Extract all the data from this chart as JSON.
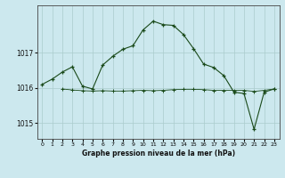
{
  "title": "Graphe pression niveau de la mer (hPa)",
  "bg_color": "#cce8ee",
  "grid_color": "#aacccc",
  "line_color": "#1a4a1a",
  "marker_color": "#1a4a1a",
  "xlim": [
    -0.5,
    23.5
  ],
  "ylim": [
    1014.55,
    1018.35
  ],
  "yticks": [
    1015,
    1016,
    1017
  ],
  "xtick_labels": [
    "0",
    "1",
    "2",
    "3",
    "4",
    "5",
    "6",
    "7",
    "8",
    "9",
    "10",
    "11",
    "12",
    "13",
    "14",
    "15",
    "16",
    "17",
    "18",
    "19",
    "20",
    "21",
    "22",
    "23"
  ],
  "series1_x": [
    0,
    1,
    2,
    3,
    4,
    5,
    6,
    7,
    8,
    9,
    10,
    11,
    12,
    13,
    14,
    15,
    16,
    17,
    18,
    19,
    20,
    21,
    22,
    23
  ],
  "series1_y": [
    1016.1,
    1016.25,
    1016.45,
    1016.6,
    1016.05,
    1015.97,
    1016.65,
    1016.9,
    1017.1,
    1017.2,
    1017.65,
    1017.9,
    1017.8,
    1017.78,
    1017.52,
    1017.12,
    1016.68,
    1016.58,
    1016.35,
    1015.88,
    1015.84,
    1014.82,
    1015.88,
    1015.97
  ],
  "series2_x": [
    2,
    3,
    4,
    5,
    6,
    7,
    8,
    9,
    10,
    11,
    12,
    13,
    14,
    15,
    16,
    17,
    18,
    19,
    20,
    21,
    22,
    23
  ],
  "series2_y": [
    1015.97,
    1015.94,
    1015.92,
    1015.91,
    1015.92,
    1015.91,
    1015.91,
    1015.92,
    1015.93,
    1015.92,
    1015.93,
    1015.95,
    1015.96,
    1015.96,
    1015.95,
    1015.93,
    1015.93,
    1015.93,
    1015.93,
    1015.9,
    1015.93,
    1015.97
  ]
}
